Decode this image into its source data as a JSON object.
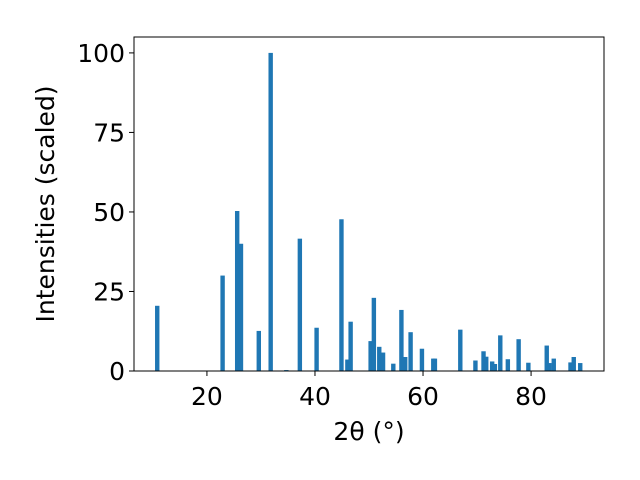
{
  "chart_data": {
    "type": "bar",
    "xlabel": "2θ (°)",
    "ylabel": "Intensities (scaled)",
    "xlim": [
      6.5,
      93.5
    ],
    "ylim": [
      0,
      105
    ],
    "x_ticks": [
      20,
      40,
      60,
      80
    ],
    "y_ticks": [
      0,
      25,
      50,
      75,
      100
    ],
    "bar_color": "#1f77b4",
    "grid": false,
    "legend": "none",
    "x": [
      10.8,
      22.9,
      25.6,
      26.3,
      29.6,
      31.8,
      34.7,
      37.2,
      40.3,
      44.9,
      46.0,
      46.6,
      50.3,
      50.9,
      51.9,
      52.6,
      54.5,
      56.0,
      56.7,
      57.7,
      59.8,
      61.9,
      62.2,
      66.9,
      69.7,
      71.2,
      71.7,
      72.8,
      73.3,
      74.3,
      75.7,
      77.7,
      79.5,
      82.9,
      83.4,
      84.2,
      87.3,
      87.9,
      89.1
    ],
    "values": [
      20.5,
      30.0,
      50.3,
      40.0,
      12.6,
      100.0,
      0.3,
      41.6,
      13.6,
      47.7,
      3.6,
      15.5,
      9.4,
      23.0,
      7.6,
      5.8,
      2.3,
      19.2,
      4.4,
      12.2,
      7.0,
      3.9,
      3.9,
      13.0,
      3.3,
      6.2,
      4.5,
      3.0,
      2.2,
      11.2,
      3.7,
      10.0,
      2.6,
      8.0,
      2.5,
      3.9,
      2.7,
      4.4,
      2.5
    ]
  }
}
